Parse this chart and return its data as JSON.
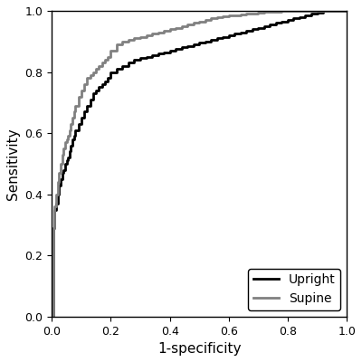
{
  "title": "",
  "xlabel": "1-specificity",
  "ylabel": "Sensitivity",
  "xlim": [
    0.0,
    1.0
  ],
  "ylim": [
    0.0,
    1.0
  ],
  "xticks": [
    0.0,
    0.2,
    0.4,
    0.6,
    0.8,
    1.0
  ],
  "yticks": [
    0.0,
    0.2,
    0.4,
    0.6,
    0.8,
    1.0
  ],
  "upright_color": "#000000",
  "supine_color": "#808080",
  "line_width": 2.0,
  "legend_loc": "lower right",
  "background_color": "#ffffff",
  "upright_x": [
    0.0,
    0.005,
    0.005,
    0.01,
    0.01,
    0.015,
    0.015,
    0.02,
    0.02,
    0.025,
    0.025,
    0.03,
    0.03,
    0.035,
    0.035,
    0.04,
    0.04,
    0.045,
    0.045,
    0.05,
    0.05,
    0.055,
    0.055,
    0.06,
    0.06,
    0.065,
    0.065,
    0.07,
    0.07,
    0.075,
    0.075,
    0.08,
    0.08,
    0.09,
    0.09,
    0.1,
    0.1,
    0.11,
    0.11,
    0.12,
    0.12,
    0.13,
    0.13,
    0.14,
    0.14,
    0.15,
    0.15,
    0.16,
    0.16,
    0.17,
    0.17,
    0.18,
    0.18,
    0.19,
    0.19,
    0.2,
    0.2,
    0.22,
    0.22,
    0.24,
    0.24,
    0.26,
    0.26,
    0.28,
    0.28,
    0.3,
    0.3,
    0.32,
    0.32,
    0.34,
    0.34,
    0.36,
    0.36,
    0.38,
    0.38,
    0.4,
    0.4,
    0.42,
    0.42,
    0.44,
    0.44,
    0.46,
    0.46,
    0.48,
    0.48,
    0.5,
    0.5,
    0.52,
    0.52,
    0.54,
    0.54,
    0.56,
    0.56,
    0.58,
    0.58,
    0.6,
    0.6,
    0.62,
    0.62,
    0.64,
    0.64,
    0.66,
    0.66,
    0.68,
    0.68,
    0.7,
    0.7,
    0.72,
    0.72,
    0.74,
    0.74,
    0.76,
    0.76,
    0.78,
    0.78,
    0.8,
    0.8,
    0.82,
    0.82,
    0.84,
    0.84,
    0.86,
    0.86,
    0.88,
    0.88,
    0.9,
    0.9,
    0.92,
    0.92,
    0.94,
    0.94,
    0.96,
    0.96,
    0.98,
    0.98,
    1.0
  ],
  "upright_y": [
    0.0,
    0.0,
    0.29,
    0.29,
    0.35,
    0.35,
    0.37,
    0.37,
    0.4,
    0.4,
    0.43,
    0.43,
    0.45,
    0.45,
    0.47,
    0.47,
    0.48,
    0.48,
    0.5,
    0.5,
    0.51,
    0.51,
    0.52,
    0.52,
    0.54,
    0.54,
    0.56,
    0.56,
    0.58,
    0.58,
    0.59,
    0.59,
    0.61,
    0.61,
    0.63,
    0.63,
    0.65,
    0.65,
    0.67,
    0.67,
    0.69,
    0.69,
    0.71,
    0.71,
    0.73,
    0.73,
    0.74,
    0.74,
    0.75,
    0.75,
    0.76,
    0.76,
    0.77,
    0.77,
    0.78,
    0.78,
    0.8,
    0.8,
    0.81,
    0.81,
    0.82,
    0.82,
    0.83,
    0.83,
    0.84,
    0.84,
    0.845,
    0.845,
    0.85,
    0.85,
    0.855,
    0.855,
    0.86,
    0.86,
    0.865,
    0.865,
    0.87,
    0.87,
    0.875,
    0.875,
    0.88,
    0.88,
    0.885,
    0.885,
    0.89,
    0.89,
    0.895,
    0.895,
    0.9,
    0.9,
    0.905,
    0.905,
    0.91,
    0.91,
    0.915,
    0.915,
    0.92,
    0.92,
    0.925,
    0.925,
    0.93,
    0.93,
    0.935,
    0.935,
    0.94,
    0.94,
    0.945,
    0.945,
    0.95,
    0.95,
    0.955,
    0.955,
    0.96,
    0.96,
    0.965,
    0.965,
    0.97,
    0.97,
    0.975,
    0.975,
    0.98,
    0.98,
    0.985,
    0.985,
    0.99,
    0.99,
    0.995,
    0.995,
    1.0,
    1.0,
    1.0,
    1.0,
    1.0,
    1.0,
    1.0,
    1.0
  ],
  "supine_x": [
    0.0,
    0.005,
    0.005,
    0.01,
    0.01,
    0.015,
    0.015,
    0.02,
    0.02,
    0.025,
    0.025,
    0.03,
    0.03,
    0.035,
    0.035,
    0.04,
    0.04,
    0.045,
    0.045,
    0.05,
    0.05,
    0.055,
    0.055,
    0.06,
    0.06,
    0.065,
    0.065,
    0.07,
    0.07,
    0.075,
    0.075,
    0.08,
    0.08,
    0.09,
    0.09,
    0.1,
    0.1,
    0.11,
    0.11,
    0.12,
    0.12,
    0.13,
    0.13,
    0.14,
    0.14,
    0.15,
    0.15,
    0.16,
    0.16,
    0.17,
    0.17,
    0.18,
    0.18,
    0.19,
    0.19,
    0.2,
    0.2,
    0.22,
    0.22,
    0.24,
    0.24,
    0.26,
    0.26,
    0.28,
    0.28,
    0.3,
    0.3,
    0.32,
    0.32,
    0.34,
    0.34,
    0.36,
    0.36,
    0.38,
    0.38,
    0.4,
    0.4,
    0.42,
    0.42,
    0.44,
    0.44,
    0.46,
    0.46,
    0.48,
    0.48,
    0.5,
    0.5,
    0.52,
    0.52,
    0.54,
    0.54,
    0.56,
    0.56,
    0.58,
    0.58,
    0.6,
    0.6,
    0.62,
    0.62,
    0.64,
    0.64,
    0.66,
    0.66,
    0.68,
    0.68,
    0.7,
    0.7,
    0.72,
    0.72,
    0.74,
    0.74,
    0.76,
    0.76,
    0.78,
    0.78,
    0.8,
    0.8,
    0.82,
    0.82,
    0.84,
    0.84,
    0.86,
    0.86,
    0.88,
    0.88,
    0.9,
    0.9,
    0.92,
    0.92,
    0.94,
    0.94,
    0.96,
    0.96,
    0.98,
    0.98,
    1.0
  ],
  "supine_y": [
    0.0,
    0.0,
    0.29,
    0.29,
    0.36,
    0.36,
    0.4,
    0.4,
    0.44,
    0.44,
    0.47,
    0.47,
    0.5,
    0.5,
    0.53,
    0.53,
    0.55,
    0.55,
    0.57,
    0.57,
    0.58,
    0.58,
    0.59,
    0.59,
    0.61,
    0.61,
    0.63,
    0.63,
    0.65,
    0.65,
    0.67,
    0.67,
    0.69,
    0.69,
    0.72,
    0.72,
    0.74,
    0.74,
    0.76,
    0.76,
    0.78,
    0.78,
    0.79,
    0.79,
    0.8,
    0.8,
    0.81,
    0.81,
    0.82,
    0.82,
    0.83,
    0.83,
    0.84,
    0.84,
    0.85,
    0.85,
    0.87,
    0.87,
    0.89,
    0.89,
    0.9,
    0.9,
    0.905,
    0.905,
    0.91,
    0.91,
    0.915,
    0.915,
    0.92,
    0.92,
    0.925,
    0.925,
    0.93,
    0.93,
    0.935,
    0.935,
    0.94,
    0.94,
    0.945,
    0.945,
    0.95,
    0.95,
    0.955,
    0.955,
    0.96,
    0.96,
    0.965,
    0.965,
    0.97,
    0.97,
    0.975,
    0.975,
    0.98,
    0.98,
    0.982,
    0.982,
    0.984,
    0.984,
    0.986,
    0.986,
    0.988,
    0.988,
    0.99,
    0.99,
    0.992,
    0.992,
    0.994,
    0.994,
    0.996,
    0.996,
    0.997,
    0.997,
    0.998,
    0.998,
    0.999,
    0.999,
    1.0,
    1.0,
    1.0,
    1.0,
    1.0,
    1.0,
    1.0,
    1.0,
    1.0,
    1.0,
    1.0,
    1.0,
    1.0,
    1.0,
    1.0,
    1.0,
    1.0,
    1.0,
    1.0,
    1.0
  ]
}
